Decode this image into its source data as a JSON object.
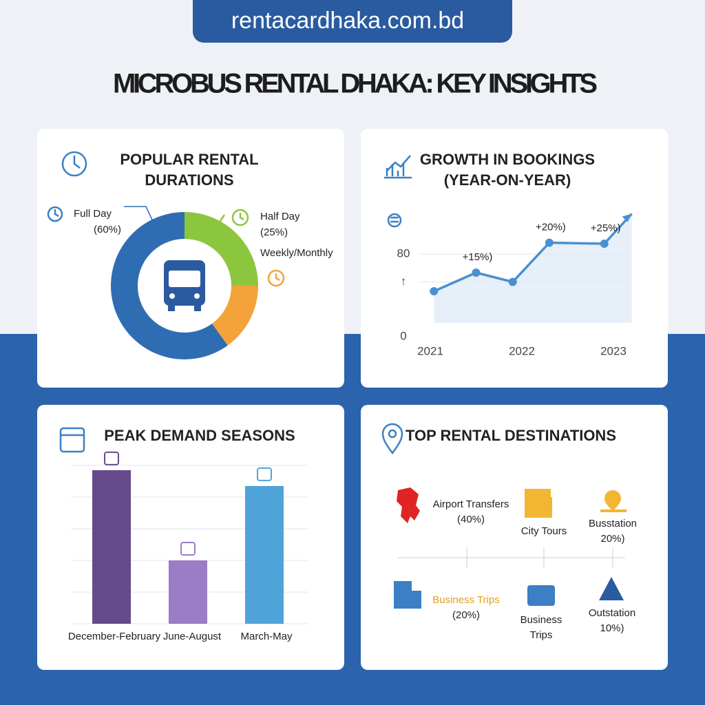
{
  "site": "rentacardhaka.com.bd",
  "title": "MICROBUS RENTAL DHAKA: KEY INSIGHTS",
  "chart_data": [
    {
      "type": "pie",
      "title": [
        "POPULAR RENTAL",
        "DURATIONS"
      ],
      "categories": [
        "Full Day",
        "Half Day",
        "Weekly/Monthly"
      ],
      "values": [
        60,
        25,
        15
      ],
      "value_labels": [
        "(60%)",
        "(25%)",
        null
      ],
      "colors": [
        "#2f6db3",
        "#8cc63f",
        "#f4a23a"
      ]
    },
    {
      "type": "line",
      "title": [
        "GROWTH IN BOOKINGS",
        "(YEAR-ON-YEAR)"
      ],
      "x": [
        2021.04,
        2021.5,
        2021.9,
        2022.3,
        2022.9,
        2023.2
      ],
      "values": [
        44,
        62,
        53,
        91,
        90,
        119
      ],
      "value_labels": [
        null,
        "+15%)",
        null,
        "+20%)",
        "+25%)",
        null
      ],
      "color": "#4a90d0",
      "xlim": [
        2020.9,
        2023.3
      ],
      "xticks": [
        2021,
        2022,
        2023
      ],
      "ylim": [
        0,
        120
      ],
      "yticks": [
        0,
        {
          "value": 53,
          "label": "↑"
        },
        80
      ],
      "grid": true
    },
    {
      "type": "bar",
      "title": [
        "PEAK DEMAND SEASONS"
      ],
      "categories": [
        "December-February",
        "June-August",
        "March-May"
      ],
      "values": [
        4.85,
        2,
        4.35
      ],
      "colors": [
        "#654a8c",
        "#9b7cc6",
        "#4fa3d8"
      ],
      "ylim": [
        0,
        5
      ],
      "grid": true
    }
  ],
  "destinations": {
    "title": "TOP RENTAL DESTINATIONS",
    "items": [
      {
        "label": [
          "Airport Transfers"
        ],
        "share": "(40%)"
      },
      {
        "label": [
          "City Tours"
        ],
        "share": null
      },
      {
        "label": [
          "Busstation"
        ],
        "share": "20%)"
      },
      {
        "label": [
          "Business Trips"
        ],
        "share": "(20%)"
      },
      {
        "label": [
          "Business",
          "Trips"
        ],
        "share": null
      },
      {
        "label": [
          "Outstation"
        ],
        "share": "10%)"
      }
    ]
  }
}
